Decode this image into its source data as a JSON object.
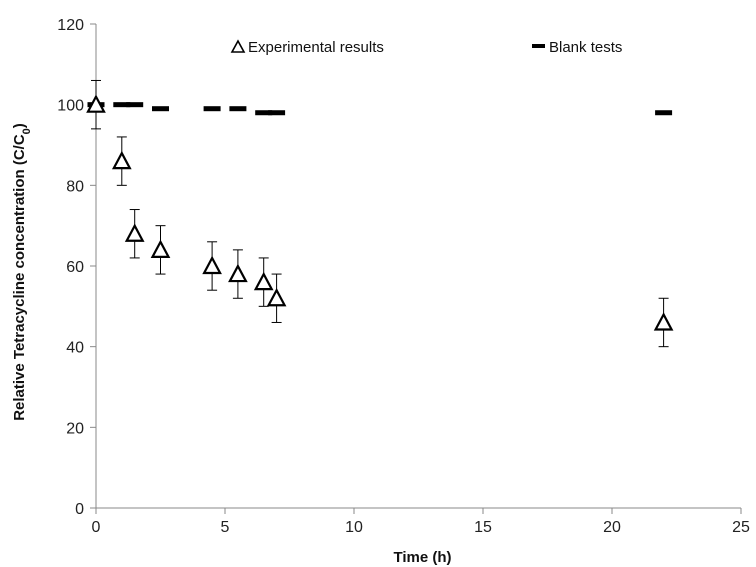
{
  "chart_data": {
    "type": "scatter",
    "xlabel": "Time (h)",
    "ylabel_main": "Relative Tetracycline concentration (C/C",
    "ylabel_sub": "0",
    "ylabel_close": ")",
    "xlim": [
      0,
      25
    ],
    "ylim": [
      0,
      120
    ],
    "xticks": [
      0,
      5,
      10,
      15,
      20,
      25
    ],
    "yticks": [
      0,
      20,
      40,
      60,
      80,
      100,
      120
    ],
    "grid": false,
    "legend_position": "top",
    "series": [
      {
        "name": "Experimental results",
        "marker": "open-triangle",
        "color": "#000000",
        "points": [
          {
            "x": 0,
            "y": 100,
            "err": 6
          },
          {
            "x": 1,
            "y": 86,
            "err": 6
          },
          {
            "x": 1.5,
            "y": 68,
            "err": 6
          },
          {
            "x": 2.5,
            "y": 64,
            "err": 6
          },
          {
            "x": 4.5,
            "y": 60,
            "err": 6
          },
          {
            "x": 5.5,
            "y": 58,
            "err": 6
          },
          {
            "x": 6.5,
            "y": 56,
            "err": 6
          },
          {
            "x": 7,
            "y": 52,
            "err": 6
          },
          {
            "x": 22,
            "y": 46,
            "err": 6
          }
        ]
      },
      {
        "name": "Blank tests",
        "marker": "dash",
        "color": "#000000",
        "points": [
          {
            "x": 0,
            "y": 100
          },
          {
            "x": 1,
            "y": 100
          },
          {
            "x": 1.5,
            "y": 100
          },
          {
            "x": 2.5,
            "y": 99
          },
          {
            "x": 4.5,
            "y": 99
          },
          {
            "x": 5.5,
            "y": 99
          },
          {
            "x": 6.5,
            "y": 98
          },
          {
            "x": 7,
            "y": 98
          },
          {
            "x": 22,
            "y": 98
          }
        ]
      }
    ]
  }
}
